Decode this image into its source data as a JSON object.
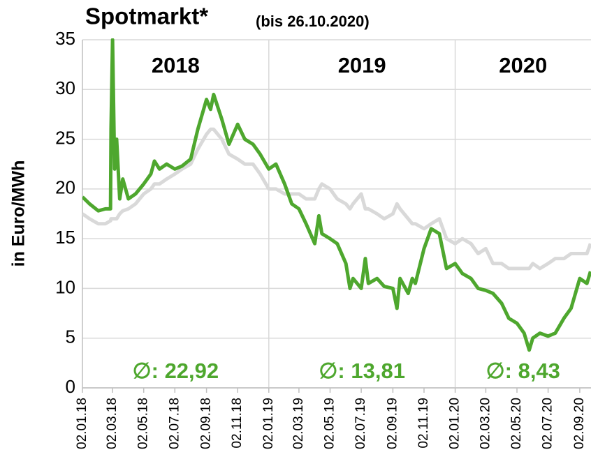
{
  "chart_data": {
    "type": "line",
    "title": "Spotmarkt*",
    "subtitle": "(bis 26.10.2020)",
    "y_label": "in Euro/MWh",
    "year_labels": [
      "2018",
      "2019",
      "2020"
    ],
    "averages": [
      "∅: 22,92",
      "∅: 13,81",
      "∅: 8,43"
    ],
    "ylim": [
      0,
      35
    ],
    "yticks": [
      0,
      5,
      10,
      15,
      20,
      25,
      30,
      35
    ],
    "xlim": [
      "02.01.18",
      "24.09.20"
    ],
    "xticks": [
      "02.01.18",
      "02.03.18",
      "02.05.18",
      "02.07.18",
      "02.09.18",
      "02.11.18",
      "02.01.19",
      "02.03.19",
      "02.05.19",
      "02.07.19",
      "02.09.19",
      "02.11.19",
      "02.01.20",
      "02.03.20",
      "02.05.20",
      "02.07.20",
      "02.09.20"
    ],
    "x_grid_step": 6,
    "grid": true,
    "x": [
      "02.01.18",
      "16.01.18",
      "02.02.18",
      "16.02.18",
      "26.02.18",
      "27.02.18",
      "02.03.18",
      "06.03.18",
      "10.03.18",
      "16.03.18",
      "22.03.18",
      "02.04.18",
      "16.04.18",
      "02.05.18",
      "16.05.18",
      "23.05.18",
      "02.06.18",
      "16.06.18",
      "02.07.18",
      "16.07.18",
      "02.08.18",
      "16.08.18",
      "02.09.18",
      "10.09.18",
      "16.09.18",
      "02.10.18",
      "16.10.18",
      "02.11.18",
      "16.11.18",
      "02.12.18",
      "16.12.18",
      "02.01.19",
      "16.01.19",
      "02.02.19",
      "16.02.19",
      "02.03.19",
      "16.03.19",
      "02.04.19",
      "10.04.19",
      "16.04.19",
      "02.05.19",
      "16.05.19",
      "02.06.19",
      "10.06.19",
      "16.06.19",
      "02.07.19",
      "10.07.19",
      "16.07.19",
      "02.08.19",
      "16.08.19",
      "02.09.19",
      "10.09.19",
      "16.09.19",
      "02.10.19",
      "10.10.19",
      "16.10.19",
      "02.11.19",
      "16.11.19",
      "02.12.19",
      "16.12.19",
      "02.01.20",
      "16.01.20",
      "02.02.20",
      "16.02.20",
      "02.03.20",
      "16.03.20",
      "02.04.20",
      "16.04.20",
      "02.05.20",
      "16.05.20",
      "26.05.20",
      "02.06.20",
      "16.06.20",
      "02.07.20",
      "16.07.20",
      "02.08.20",
      "16.08.20",
      "02.09.20",
      "16.09.20",
      "23.09.20"
    ],
    "series": [
      {
        "color": "#d9d9d9",
        "values": [
          17.5,
          17,
          16.5,
          16.5,
          16.8,
          17,
          17,
          17,
          17,
          17.5,
          17.8,
          18,
          18.5,
          19.5,
          20,
          20.5,
          20.5,
          21,
          21.5,
          22,
          22.5,
          24,
          25.5,
          26,
          26,
          25,
          23.5,
          23,
          22.5,
          22.5,
          21.5,
          20,
          20,
          19.5,
          19.5,
          19.5,
          19,
          19,
          20,
          20.5,
          20,
          19,
          18.5,
          18,
          18.5,
          19.5,
          18,
          18,
          17.5,
          17,
          17.5,
          18.5,
          18,
          17,
          16.5,
          16.5,
          16,
          16.5,
          17,
          15,
          14.5,
          15,
          14.5,
          13.5,
          14,
          12.5,
          12.5,
          12,
          12,
          12,
          12,
          12.5,
          12,
          12.5,
          13,
          13,
          13.5,
          13.5,
          13.5,
          14.5
        ]
      },
      {
        "color": "#4ea72e",
        "values": [
          19.2,
          18.5,
          17.8,
          18,
          18,
          26,
          35,
          22,
          25,
          19,
          21,
          19,
          19.5,
          20.5,
          21.5,
          22.8,
          22,
          22.5,
          22,
          22.3,
          23,
          26,
          29,
          28,
          29.5,
          27,
          24.5,
          26.5,
          25,
          24.5,
          23.5,
          22,
          22.5,
          20.5,
          18.5,
          18,
          16.5,
          14.5,
          17.3,
          15.5,
          15,
          14.5,
          12.5,
          10,
          11,
          10,
          13,
          10.5,
          11,
          10.2,
          10,
          8,
          11,
          9.5,
          11,
          10.5,
          14,
          16,
          15.5,
          12,
          12.5,
          11.5,
          11,
          10,
          9.8,
          9.5,
          8.5,
          7,
          6.5,
          5.5,
          3.8,
          5,
          5.5,
          5.2,
          5.5,
          7,
          8,
          11,
          10.5,
          11.7
        ]
      }
    ]
  }
}
